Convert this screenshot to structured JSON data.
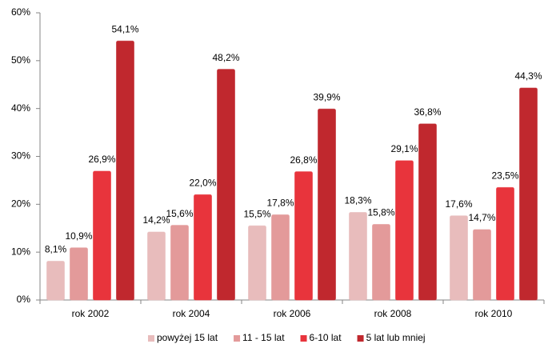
{
  "chart_data": {
    "type": "bar",
    "categories": [
      "rok 2002",
      "rok 2004",
      "rok 2006",
      "rok 2008",
      "rok 2010"
    ],
    "series": [
      {
        "name": "powyżej 15 lat",
        "color": "#e8bcbc",
        "values": [
          8.1,
          14.2,
          15.5,
          18.3,
          17.6
        ],
        "value_labels": [
          "8,1%",
          "14,2%",
          "15,5%",
          "18,3%",
          "17,6%"
        ]
      },
      {
        "name": "11 - 15 lat",
        "color": "#e39a9a",
        "values": [
          10.9,
          15.6,
          17.8,
          15.8,
          14.7
        ],
        "value_labels": [
          "10,9%",
          "15,6%",
          "17,8%",
          "15,8%",
          "14,7%"
        ]
      },
      {
        "name": "6-10 lat",
        "color": "#e8343c",
        "values": [
          26.9,
          22.0,
          26.8,
          29.1,
          23.5
        ],
        "value_labels": [
          "26,9%",
          "22,0%",
          "26,8%",
          "29,1%",
          "23,5%"
        ]
      },
      {
        "name": "5 lat lub mniej",
        "color": "#c0282e",
        "values": [
          54.1,
          48.2,
          39.9,
          36.8,
          44.3
        ],
        "value_labels": [
          "54,1%",
          "48,2%",
          "39,9%",
          "36,8%",
          "44,3%"
        ]
      }
    ],
    "ylim": [
      0,
      60
    ],
    "yticks": [
      {
        "value": 0,
        "label": "0%"
      },
      {
        "value": 10,
        "label": "10%"
      },
      {
        "value": 20,
        "label": "20%"
      },
      {
        "value": 30,
        "label": "30%"
      },
      {
        "value": 40,
        "label": "40%"
      },
      {
        "value": 50,
        "label": "50%"
      },
      {
        "value": 60,
        "label": "60%"
      }
    ],
    "grid": false,
    "legend": "bottom"
  }
}
